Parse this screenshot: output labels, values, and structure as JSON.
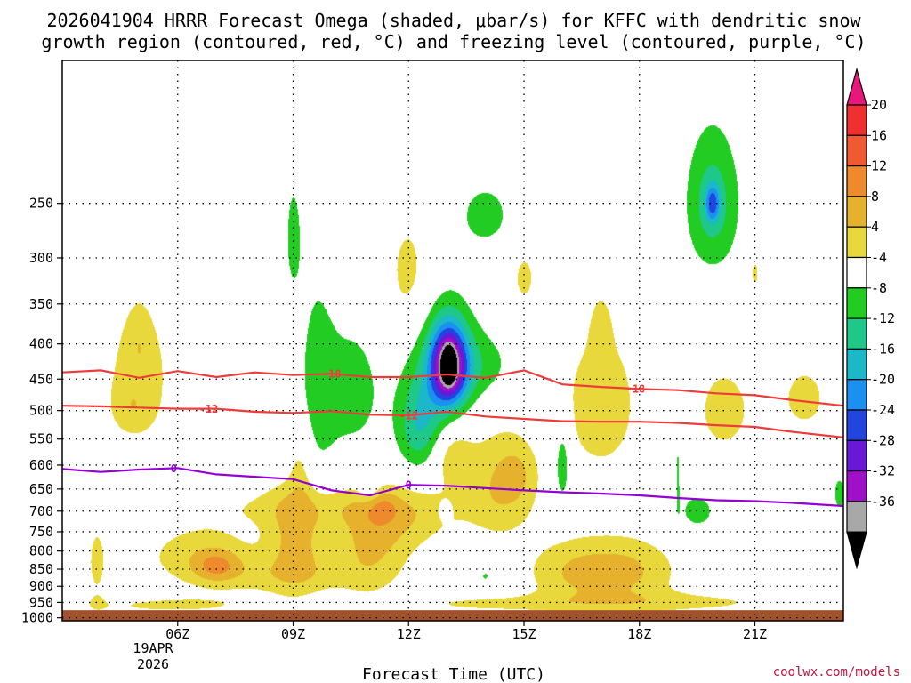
{
  "chart_data": {
    "type": "heatmap",
    "title_line1": "2026041904 HRRR Forecast Omega (shaded, μbar/s) for KFFC with dendritic snow",
    "title_line2": "growth region (contoured, red, °C) and freezing level (contoured, purple, °C)",
    "xlabel": "Forecast Time (UTC)",
    "ylabel": "",
    "date_label": [
      "19APR",
      "2026"
    ],
    "credit": "coolwx.com/models",
    "x_range_hours": [
      3.0,
      23.3
    ],
    "y_range_hpa": [
      1010,
      155
    ],
    "x_ticks": [
      {
        "hour": 6,
        "label": "06Z"
      },
      {
        "hour": 9,
        "label": "09Z"
      },
      {
        "hour": 12,
        "label": "12Z"
      },
      {
        "hour": 15,
        "label": "15Z"
      },
      {
        "hour": 18,
        "label": "18Z"
      },
      {
        "hour": 21,
        "label": "21Z"
      }
    ],
    "y_ticks": [
      250,
      300,
      350,
      400,
      450,
      500,
      550,
      600,
      650,
      700,
      750,
      800,
      850,
      900,
      950,
      1000
    ],
    "surface_pressure_hpa": 975,
    "surface_color": "#a0522d",
    "colorbar": {
      "label_values": [
        20,
        16,
        12,
        8,
        4,
        -4,
        -8,
        -12,
        -16,
        -20,
        -24,
        -28,
        -32,
        -36
      ],
      "bins": [
        {
          "min": 24,
          "max": 99,
          "color": "#e8177c"
        },
        {
          "min": 20,
          "max": 24,
          "color": "#f03030"
        },
        {
          "min": 16,
          "max": 20,
          "color": "#f05a32"
        },
        {
          "min": 12,
          "max": 16,
          "color": "#ee8a2c"
        },
        {
          "min": 8,
          "max": 12,
          "color": "#e6b22e"
        },
        {
          "min": 4,
          "max": 8,
          "color": "#e8d83c"
        },
        {
          "min": -4,
          "max": 4,
          "color": "#ffffff"
        },
        {
          "min": -8,
          "max": -4,
          "color": "#22cc22"
        },
        {
          "min": -12,
          "max": -8,
          "color": "#1ec888"
        },
        {
          "min": -16,
          "max": -12,
          "color": "#1ab8c8"
        },
        {
          "min": -20,
          "max": -16,
          "color": "#1a90f0"
        },
        {
          "min": -24,
          "max": -20,
          "color": "#2244e0"
        },
        {
          "min": -28,
          "max": -24,
          "color": "#6a18d8"
        },
        {
          "min": -32,
          "max": -28,
          "color": "#a010c8"
        },
        {
          "min": -36,
          "max": -32,
          "color": "#a8a8a8"
        },
        {
          "min": -99,
          "max": -36,
          "color": "#000000"
        }
      ]
    },
    "omega_blobs": [
      {
        "hour": 5.0,
        "p": 440,
        "dh": 1.05,
        "dp": 130,
        "amp": 5.5
      },
      {
        "hour": 4.8,
        "p": 495,
        "dh": 0.5,
        "dp": 40,
        "amp": 3.5
      },
      {
        "hour": 5.0,
        "p": 400,
        "dh": 0.25,
        "dp": 40,
        "amp": 3.0
      },
      {
        "hour": 6.6,
        "p": 810,
        "dh": 1.6,
        "dp": 85,
        "amp": 6.0
      },
      {
        "hour": 7.0,
        "p": 840,
        "dh": 0.6,
        "dp": 45,
        "amp": 7.5
      },
      {
        "hour": 3.9,
        "p": 830,
        "dh": 0.3,
        "dp": 130,
        "amp": 4.8
      },
      {
        "hour": 9.1,
        "p": 770,
        "dh": 0.75,
        "dp": 130,
        "amp": 9.0
      },
      {
        "hour": 9.2,
        "p": 600,
        "dh": 0.3,
        "dp": 90,
        "amp": 4.6
      },
      {
        "hour": 11.0,
        "p": 790,
        "dh": 1.0,
        "dp": 130,
        "amp": 8.0
      },
      {
        "hour": 8.6,
        "p": 870,
        "dh": 2.0,
        "dp": 55,
        "amp": 4.5
      },
      {
        "hour": 12.0,
        "p": 720,
        "dh": 1.3,
        "dp": 80,
        "amp": 4.8
      },
      {
        "hour": 13.1,
        "p": 580,
        "dh": 0.55,
        "dp": 60,
        "amp": 6.5
      },
      {
        "hour": 14.4,
        "p": 640,
        "dh": 0.95,
        "dp": 120,
        "amp": 8.0
      },
      {
        "hour": 14.8,
        "p": 620,
        "dh": 0.4,
        "dp": 50,
        "amp": 4.0
      },
      {
        "hour": 16.3,
        "p": 860,
        "dh": 1.25,
        "dp": 95,
        "amp": 7.5
      },
      {
        "hour": 17.8,
        "p": 855,
        "dh": 1.25,
        "dp": 95,
        "amp": 7.5
      },
      {
        "hour": 17.0,
        "p": 490,
        "dh": 1.3,
        "dp": 160,
        "amp": 5.6
      },
      {
        "hour": 17.0,
        "p": 380,
        "dh": 0.25,
        "dp": 40,
        "amp": 3.0
      },
      {
        "hour": 12.0,
        "p": 320,
        "dh": 0.65,
        "dp": 75,
        "amp": 5.5
      },
      {
        "hour": 15.0,
        "p": 320,
        "dh": 0.35,
        "dp": 35,
        "amp": 5.0
      },
      {
        "hour": 20.2,
        "p": 500,
        "dh": 0.9,
        "dp": 95,
        "amp": 5.3
      },
      {
        "hour": 22.3,
        "p": 480,
        "dh": 0.9,
        "dp": 80,
        "amp": 4.8
      },
      {
        "hour": 21.0,
        "p": 315,
        "dh": 0.2,
        "dp": 30,
        "amp": 4.6
      },
      {
        "hour": 19.0,
        "p": 950,
        "dh": 3.2,
        "dp": 35,
        "amp": 5.0
      },
      {
        "hour": 14.0,
        "p": 955,
        "dh": 2.5,
        "dp": 30,
        "amp": 4.4
      },
      {
        "hour": 9.6,
        "p": 690,
        "dh": 3.3,
        "dp": 50,
        "amp": 4.5
      },
      {
        "hour": 5.8,
        "p": 960,
        "dh": 3.0,
        "dp": 35,
        "amp": 4.4
      },
      {
        "hour": 11.3,
        "p": 690,
        "dh": 0.4,
        "dp": 35,
        "amp": 4.2
      },
      {
        "hour": 9.6,
        "p": 470,
        "dh": 0.55,
        "dp": 200,
        "amp": -5.2
      },
      {
        "hour": 10.6,
        "p": 470,
        "dh": 0.8,
        "dp": 120,
        "amp": -5.5
      },
      {
        "hour": 9.0,
        "p": 280,
        "dh": 0.22,
        "dp": 55,
        "amp": -5.3
      },
      {
        "hour": 12.9,
        "p": 430,
        "dh": 0.9,
        "dp": 90,
        "amp": -9.0
      },
      {
        "hour": 13.05,
        "p": 430,
        "dh": 0.45,
        "dp": 55,
        "amp": -30.0
      },
      {
        "hour": 13.05,
        "p": 430,
        "dh": 0.13,
        "dp": 20,
        "amp": -28.0
      },
      {
        "hour": 12.3,
        "p": 530,
        "dh": 0.6,
        "dp": 80,
        "amp": -11.0
      },
      {
        "hour": 13.9,
        "p": 430,
        "dh": 1.0,
        "dp": 50,
        "amp": -5.0
      },
      {
        "hour": 14.0,
        "p": 260,
        "dh": 0.85,
        "dp": 35,
        "amp": -5.3
      },
      {
        "hour": 16.0,
        "p": 600,
        "dh": 0.2,
        "dp": 80,
        "amp": -9.0
      },
      {
        "hour": 19.9,
        "p": 250,
        "dh": 0.7,
        "dp": 60,
        "amp": -10.0
      },
      {
        "hour": 19.9,
        "p": 250,
        "dh": 0.18,
        "dp": 15,
        "amp": -14.0
      },
      {
        "hour": 19.5,
        "p": 700,
        "dh": 0.6,
        "dp": 55,
        "amp": -5.5
      },
      {
        "hour": 19.0,
        "p": 600,
        "dh": 0.07,
        "dp": 100,
        "amp": -5.0
      },
      {
        "hour": 23.2,
        "p": 660,
        "dh": 0.2,
        "dp": 50,
        "amp": -5.5
      },
      {
        "hour": 4.8,
        "p": 700,
        "dh": 0.4,
        "dp": 30,
        "amp": -4.8
      },
      {
        "hour": 11.0,
        "p": 650,
        "dh": 0.3,
        "dp": 40,
        "amp": -4.6
      },
      {
        "hour": 12.95,
        "p": 700,
        "dh": 0.15,
        "dp": 20,
        "amp": -5.0
      },
      {
        "hour": 14.0,
        "p": 870,
        "dh": 0.15,
        "dp": 20,
        "amp": -5.0
      }
    ],
    "contours": [
      {
        "name": "-18",
        "color": "#ee3b3b",
        "label": "-18",
        "points": [
          [
            3.0,
            440
          ],
          [
            4.0,
            437
          ],
          [
            5.0,
            448
          ],
          [
            6.0,
            438
          ],
          [
            7.0,
            447
          ],
          [
            8.0,
            440
          ],
          [
            9.0,
            444
          ],
          [
            10.0,
            442
          ],
          [
            11.0,
            447
          ],
          [
            12.0,
            447
          ],
          [
            13.0,
            443
          ],
          [
            14.0,
            448
          ],
          [
            15.0,
            437
          ],
          [
            16.0,
            458
          ],
          [
            17.0,
            462
          ],
          [
            18.0,
            465
          ],
          [
            19.0,
            467
          ],
          [
            20.0,
            472
          ],
          [
            21.0,
            475
          ],
          [
            22.0,
            483
          ],
          [
            23.3,
            492
          ]
        ],
        "label_hours": [
          10.0,
          17.9
        ]
      },
      {
        "name": "-12",
        "color": "#ee3b3b",
        "label": "-12",
        "points": [
          [
            3.0,
            492
          ],
          [
            4.0,
            493
          ],
          [
            5.0,
            495
          ],
          [
            6.0,
            497
          ],
          [
            7.0,
            497
          ],
          [
            8.0,
            502
          ],
          [
            9.0,
            504
          ],
          [
            10.0,
            501
          ],
          [
            11.0,
            507
          ],
          [
            12.0,
            508
          ],
          [
            13.0,
            502
          ],
          [
            14.0,
            510
          ],
          [
            15.0,
            514
          ],
          [
            16.0,
            518
          ],
          [
            17.0,
            519
          ],
          [
            18.0,
            519
          ],
          [
            19.0,
            521
          ],
          [
            20.0,
            525
          ],
          [
            21.0,
            528
          ],
          [
            22.0,
            537
          ],
          [
            23.3,
            547
          ]
        ],
        "label_hours": [
          6.8,
          12.0
        ]
      },
      {
        "name": "0",
        "color": "#9400d3",
        "label": "0",
        "points": [
          [
            3.0,
            608
          ],
          [
            4.0,
            614
          ],
          [
            5.0,
            609
          ],
          [
            6.0,
            606
          ],
          [
            7.0,
            619
          ],
          [
            8.0,
            624
          ],
          [
            9.0,
            629
          ],
          [
            10.0,
            653
          ],
          [
            11.0,
            664
          ],
          [
            12.0,
            641
          ],
          [
            13.0,
            643
          ],
          [
            14.0,
            648
          ],
          [
            15.0,
            653
          ],
          [
            16.0,
            657
          ],
          [
            17.0,
            660
          ],
          [
            18.0,
            664
          ],
          [
            19.0,
            670
          ],
          [
            20.0,
            675
          ],
          [
            21.0,
            677
          ],
          [
            22.0,
            681
          ],
          [
            23.3,
            688
          ]
        ],
        "label_hours": [
          5.9,
          12.0
        ]
      }
    ]
  }
}
